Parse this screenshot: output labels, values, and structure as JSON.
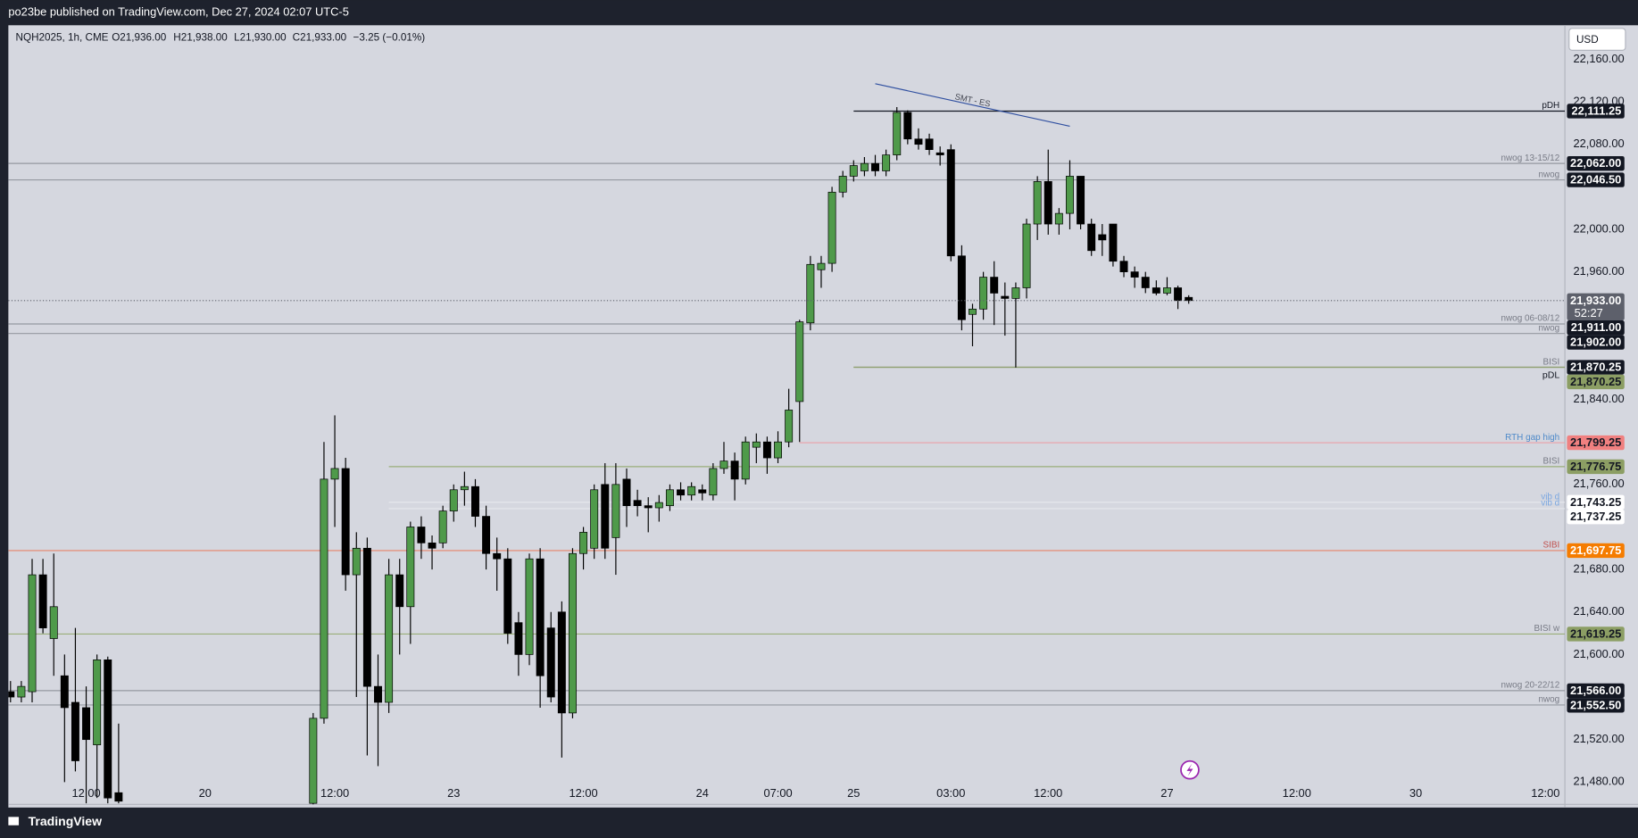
{
  "header": {
    "publisher": "po23be published on TradingView.com, Dec 27, 2024 02:07 UTC-5"
  },
  "footer": {
    "brand": "TradingView"
  },
  "currency": "USD",
  "legend": {
    "symbol": "NQH2025, 1h, CME",
    "open": "O21,936.00",
    "high": "H21,938.00",
    "low": "L21,930.00",
    "close": "C21,933.00",
    "change": "−3.25 (−0.01%)"
  },
  "chart_data": {
    "type": "candlestick",
    "up_color": "#4f9a4a",
    "down_color": "#000000",
    "xlim": [
      -0.2,
      143.8
    ],
    "ylim": [
      21459,
      22192
    ],
    "xticks": [
      {
        "value": 7,
        "label": "12:00"
      },
      {
        "value": 18,
        "label": "20"
      },
      {
        "value": 30,
        "label": "12:00"
      },
      {
        "value": 41,
        "label": "23"
      },
      {
        "value": 53,
        "label": "12:00"
      },
      {
        "value": 64,
        "label": "24"
      },
      {
        "value": 71,
        "label": "07:00"
      },
      {
        "value": 78,
        "label": "25"
      },
      {
        "value": 87,
        "label": "03:00"
      },
      {
        "value": 96,
        "label": "12:00"
      },
      {
        "value": 107,
        "label": "27"
      },
      {
        "value": 119,
        "label": "12:00"
      },
      {
        "value": 130,
        "label": "30"
      },
      {
        "value": 142,
        "label": "12:00"
      }
    ],
    "yticks": [
      {
        "value": 22160,
        "label": "22,160.00"
      },
      {
        "value": 22120,
        "label": "22,120.00"
      },
      {
        "value": 22080,
        "label": "22,080.00"
      },
      {
        "value": 22000,
        "label": "22,000.00"
      },
      {
        "value": 21960,
        "label": "21,960.00"
      },
      {
        "value": 21840,
        "label": "21,840.00"
      },
      {
        "value": 21760,
        "label": "21,760.00"
      },
      {
        "value": 21680,
        "label": "21,680.00"
      },
      {
        "value": 21640,
        "label": "21,640.00"
      },
      {
        "value": 21600,
        "label": "21,600.00"
      },
      {
        "value": 21520,
        "label": "21,520.00"
      },
      {
        "value": 21480,
        "label": "21,480.00"
      }
    ],
    "x": [
      0,
      1,
      2,
      3,
      4,
      5,
      6,
      7,
      8,
      9,
      10,
      28,
      29,
      30,
      31,
      32,
      33,
      34,
      35,
      36,
      37,
      38,
      39,
      40,
      41,
      42,
      43,
      44,
      45,
      46,
      47,
      48,
      49,
      50,
      51,
      52,
      53,
      54,
      55,
      56,
      57,
      58,
      59,
      60,
      61,
      62,
      63,
      64,
      65,
      66,
      67,
      68,
      69,
      70,
      71,
      72,
      73,
      74,
      75,
      76,
      77,
      78,
      79,
      80,
      81,
      82,
      83,
      84,
      85,
      86,
      87,
      88,
      89,
      90,
      91,
      92,
      93,
      94,
      95,
      96,
      97,
      98,
      99,
      100,
      101,
      102,
      103,
      104,
      105,
      106,
      107,
      108,
      109
    ],
    "open": [
      21565,
      21560,
      21565,
      21675,
      21615,
      21580,
      21555,
      21550,
      21515,
      21595,
      21470,
      21460,
      21540,
      21765,
      21775,
      21675,
      21700,
      21570,
      21555,
      21675,
      21645,
      21720,
      21705,
      21705,
      21735,
      21755,
      21758,
      21730,
      21695,
      21690,
      21630,
      21600,
      21690,
      21625,
      21640,
      21545,
      21695,
      21700,
      21760,
      21710,
      21765,
      21745,
      21740,
      21738,
      21740,
      21755,
      21750,
      21755,
      21750,
      21775,
      21782,
      21765,
      21795,
      21800,
      21785,
      21800,
      21838,
      21912,
      21962,
      21968,
      22035,
      22050,
      22055,
      22062,
      22055,
      22070,
      22110,
      22085,
      22085,
      22072,
      22075,
      21975,
      21920,
      21925,
      21955,
      21937,
      21935,
      21945,
      22005,
      22045,
      22005,
      22015,
      22050,
      22005,
      21995,
      22005,
      21970,
      21960,
      21955,
      21945,
      21940,
      21945,
      21936
    ],
    "high": [
      21575,
      21575,
      21690,
      21690,
      21695,
      21600,
      21625,
      21570,
      21600,
      21598,
      21535,
      21545,
      21800,
      21825,
      21785,
      21715,
      21710,
      21600,
      21690,
      21690,
      21725,
      21730,
      21712,
      21740,
      21760,
      21772,
      21765,
      21740,
      21710,
      21700,
      21640,
      21695,
      21700,
      21640,
      21650,
      21700,
      21720,
      21760,
      21780,
      21780,
      21775,
      21755,
      21748,
      21750,
      21760,
      21762,
      21762,
      21760,
      21780,
      21800,
      21790,
      21805,
      21808,
      21805,
      21810,
      21850,
      21915,
      21975,
      21975,
      22040,
      22055,
      22065,
      22068,
      22070,
      22075,
      22115,
      22112,
      22095,
      22090,
      22078,
      22080,
      21985,
      21930,
      21960,
      21970,
      21950,
      21950,
      22010,
      22050,
      22075,
      22020,
      22065,
      22050,
      22010,
      22005,
      22005,
      21975,
      21965,
      21960,
      21952,
      21955,
      21947,
      21938
    ],
    "low": [
      21555,
      21555,
      21555,
      21620,
      21580,
      21480,
      21490,
      21460,
      21465,
      21460,
      21460,
      21459,
      21535,
      21720,
      21660,
      21560,
      21505,
      21495,
      21545,
      21600,
      21610,
      21690,
      21680,
      21700,
      21725,
      21740,
      21720,
      21680,
      21660,
      21610,
      21580,
      21590,
      21550,
      21555,
      21503,
      21540,
      21680,
      21690,
      21690,
      21675,
      21720,
      21730,
      21715,
      21725,
      21735,
      21745,
      21745,
      21745,
      21745,
      21770,
      21745,
      21760,
      21780,
      21770,
      21780,
      21795,
      21800,
      21905,
      21945,
      21960,
      22030,
      22045,
      22050,
      22050,
      22050,
      22065,
      22080,
      22075,
      22070,
      22060,
      21970,
      21905,
      21890,
      21915,
      21910,
      21900,
      21870,
      21935,
      21990,
      21995,
      21995,
      22000,
      22000,
      21975,
      21975,
      21965,
      21955,
      21945,
      21940,
      21938,
      21938,
      21925,
      21930
    ],
    "close": [
      21560,
      21570,
      21675,
      21625,
      21645,
      21550,
      21500,
      21520,
      21595,
      21465,
      21462,
      21540,
      21765,
      21775,
      21675,
      21700,
      21570,
      21555,
      21675,
      21645,
      21720,
      21705,
      21700,
      21735,
      21755,
      21758,
      21730,
      21695,
      21690,
      21620,
      21600,
      21690,
      21580,
      21560,
      21545,
      21695,
      21715,
      21755,
      21700,
      21760,
      21740,
      21740,
      21738,
      21743,
      21755,
      21750,
      21758,
      21752,
      21775,
      21782,
      21765,
      21800,
      21800,
      21785,
      21800,
      21830,
      21913,
      21967,
      21968,
      22035,
      22050,
      22060,
      22062,
      22055,
      22070,
      22110,
      22085,
      22080,
      22075,
      22070,
      21975,
      21915,
      21925,
      21955,
      21940,
      21935,
      21945,
      22005,
      22045,
      22005,
      22015,
      22050,
      22005,
      21980,
      21990,
      21970,
      21960,
      21955,
      21945,
      21940,
      21945,
      21933,
      21933
    ],
    "last_price": {
      "value": 21933,
      "value_label": "21,933.00",
      "countdown": "52:27"
    },
    "annotation": {
      "text": "SMT - ES",
      "x": [
        80,
        98
      ],
      "y": [
        22137,
        22097
      ],
      "color": "#2f4fa0"
    },
    "levels": [
      {
        "label": "pDH",
        "value": 22111.25,
        "value_label": "22,111.25",
        "x_from": 78,
        "line_color": "#131722",
        "label_color": "#131722",
        "tag_color": "#131722",
        "tag_text": "#ffffff"
      },
      {
        "label": "nwog 13-15/12",
        "value": 22062.0,
        "value_label": "22,062.00",
        "line_color": "#9598a1",
        "label_color": "#787b86",
        "tag_color": "#131722",
        "tag_text": "#ffffff"
      },
      {
        "label": "nwog",
        "value": 22046.5,
        "value_label": "22,046.50",
        "line_color": "#9598a1",
        "label_color": "#787b86",
        "tag_color": "#131722",
        "tag_text": "#ffffff"
      },
      {
        "label": "nwog 06-08/12",
        "value": 21911.0,
        "value_label": "21,911.00",
        "line_color": "#9598a1",
        "label_color": "#787b86",
        "tag_color": "#131722",
        "tag_text": "#ffffff"
      },
      {
        "label": "nwog",
        "value": 21902.0,
        "value_label": "21,902.00",
        "line_color": "#9598a1",
        "label_color": "#787b86",
        "tag_color": "#131722",
        "tag_text": "#ffffff"
      },
      {
        "label": "BISI",
        "value": 21870.25,
        "value_label": "21,870.25",
        "x_from": 78,
        "line_color": "#8fa070",
        "label_color": "#787b86",
        "tag_color": "#131722",
        "tag_text": "#ffffff"
      },
      {
        "label": "pDL",
        "value": 21870.25,
        "value_label": "21,870.25",
        "x_from": 78,
        "label_pos": "below",
        "line_color": "#8fa070",
        "label_color": "#131722",
        "tag_color": "#8c9e64",
        "tag_text": "#131722"
      },
      {
        "label": "RTH gap high",
        "value": 21799.25,
        "value_label": "21,799.25",
        "x_from": 73,
        "line_color": "#eaa0a8",
        "label_color": "#4f8ac9",
        "tag_color": "#f08080",
        "tag_text": "#131722"
      },
      {
        "label": "BISI",
        "value": 21776.75,
        "value_label": "21,776.75",
        "x_from": 35,
        "line_color": "#9aae7a",
        "label_color": "#787b86",
        "tag_color": "#8c9e64",
        "tag_text": "#131722"
      },
      {
        "label": "vib d",
        "value": 21743.25,
        "value_label": "21,743.25",
        "x_from": 35,
        "line_color": "#e6e8ee",
        "label_color": "#7ba7e0",
        "tag_color": "#ffffff",
        "tag_text": "#131722"
      },
      {
        "label": "vib d",
        "value": 21737.25,
        "value_label": "21,737.25",
        "x_from": 35,
        "line_color": "#e6e8ee",
        "label_color": "#7ba7e0",
        "tag_color": "#ffffff",
        "tag_text": "#131722"
      },
      {
        "label": "SIBI",
        "value": 21697.75,
        "value_label": "21,697.75",
        "line_color": "#e8846a",
        "label_color": "#c0504d",
        "tag_color": "#f57c00",
        "tag_text": "#ffffff"
      },
      {
        "label": "BISI w",
        "value": 21619.25,
        "value_label": "21,619.25",
        "line_color": "#9aae7a",
        "label_color": "#787b86",
        "tag_color": "#8c9e64",
        "tag_text": "#131722"
      },
      {
        "label": "nwog 20-22/12",
        "value": 21566.0,
        "value_label": "21,566.00",
        "line_color": "#9598a1",
        "label_color": "#787b86",
        "tag_color": "#131722",
        "tag_text": "#ffffff"
      },
      {
        "label": "nwog",
        "value": 21552.5,
        "value_label": "21,552.50",
        "line_color": "#9598a1",
        "label_color": "#787b86",
        "tag_color": "#131722",
        "tag_text": "#ffffff"
      }
    ]
  }
}
